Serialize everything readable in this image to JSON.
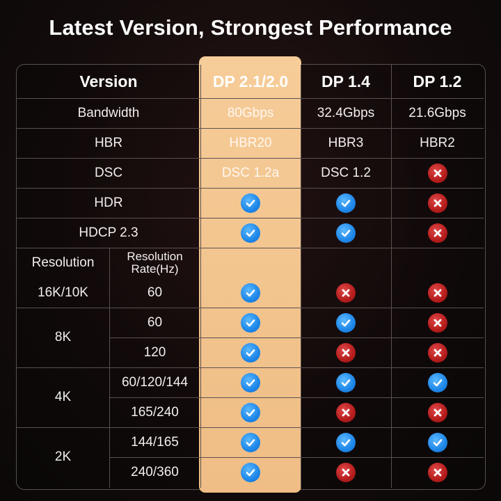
{
  "title": "Latest Version, Strongest Performance",
  "columns": {
    "version": "Version",
    "dp21": "DP 2.1/2.0",
    "dp14": "DP 1.4",
    "dp12": "DP 1.2"
  },
  "specs": [
    {
      "label": "Bandwidth",
      "dp21": "80Gbps",
      "dp14": "32.4Gbps",
      "dp12": "21.6Gbps"
    },
    {
      "label": "HBR",
      "dp21": "HBR20",
      "dp14": "HBR3",
      "dp12": "HBR2"
    },
    {
      "label": "DSC",
      "dp21": "DSC 1.2a",
      "dp14": "DSC 1.2",
      "dp12": "cross"
    },
    {
      "label": "HDR",
      "dp21": "check",
      "dp14": "check",
      "dp12": "cross"
    },
    {
      "label": "HDCP 2.3",
      "dp21": "check",
      "dp14": "check",
      "dp12": "cross"
    }
  ],
  "resolution_header": {
    "resolution": "Resolution",
    "rate_line1": "Resolution",
    "rate_line2": "Rate(Hz)"
  },
  "resolutions": [
    {
      "resolution": "16K/10K",
      "rates": [
        {
          "rate": "60",
          "dp21": "check",
          "dp14": "cross",
          "dp12": "cross"
        }
      ]
    },
    {
      "resolution": "8K",
      "rates": [
        {
          "rate": "60",
          "dp21": "check",
          "dp14": "check",
          "dp12": "cross"
        },
        {
          "rate": "120",
          "dp21": "check",
          "dp14": "cross",
          "dp12": "cross"
        }
      ]
    },
    {
      "resolution": "4K",
      "rates": [
        {
          "rate": "60/120/144",
          "dp21": "check",
          "dp14": "check",
          "dp12": "check"
        },
        {
          "rate": "165/240",
          "dp21": "check",
          "dp14": "cross",
          "dp12": "cross"
        }
      ]
    },
    {
      "resolution": "2K",
      "rates": [
        {
          "rate": "144/165",
          "dp21": "check",
          "dp14": "check",
          "dp12": "check"
        },
        {
          "rate": "240/360",
          "dp21": "check",
          "dp14": "cross",
          "dp12": "cross"
        }
      ]
    }
  ],
  "icons": {
    "check": "check-icon",
    "cross": "cross-icon"
  },
  "colors": {
    "highlight": "#f4c690",
    "check": "#1d86e8",
    "cross": "#b51c1c",
    "background": "#140c0c"
  }
}
